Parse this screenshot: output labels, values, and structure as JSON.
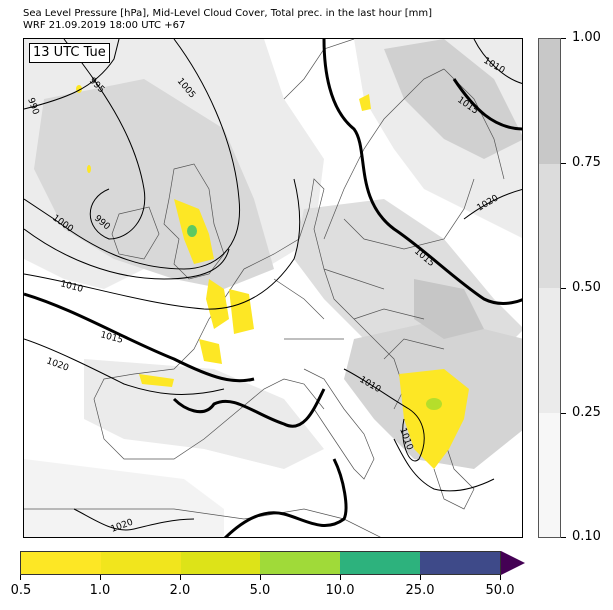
{
  "header": {
    "line1": "Sea Level Pressure [hPa], Mid-Level Cloud Cover, Total prec. in the last hour [mm]",
    "line2": "WRF 21.09.2019 18:00 UTC +67"
  },
  "map": {
    "valid_time_label": "13 UTC Tue",
    "pressure_contour_labels": [
      "990",
      "995",
      "1005",
      "990",
      "1000",
      "1010",
      "1015",
      "1020",
      "1010",
      "1015",
      "1020",
      "1015",
      "1010",
      "1010",
      "1020"
    ],
    "colors": {
      "coast": "#555555",
      "isobar": "#000000",
      "cloud_light": "#ececec",
      "cloud_mid": "#d8d8d8",
      "cloud_dark": "#c6c6c6",
      "precip_yellow": "#fde725",
      "precip_green": "#5ec962"
    }
  },
  "cloud_colorbar": {
    "tick_labels": [
      "1.00",
      "0.75",
      "0.50",
      "0.25",
      "0.10"
    ],
    "bands": [
      {
        "from": 0.75,
        "to": 1.0,
        "color": "#c8c8c8"
      },
      {
        "from": 0.5,
        "to": 0.75,
        "color": "#dcdcdc"
      },
      {
        "from": 0.25,
        "to": 0.5,
        "color": "#ebebeb"
      },
      {
        "from": 0.1,
        "to": 0.25,
        "color": "#f7f7f7"
      }
    ]
  },
  "precip_colorbar": {
    "tick_labels": [
      "0.5",
      "1.0",
      "2.0",
      "5.0",
      "10.0",
      "25.0",
      "50.0"
    ],
    "bands": [
      "#fde725",
      "#f1e51d",
      "#dde318",
      "#a0da39",
      "#2db27d",
      "#3e4a89"
    ],
    "extend_color": "#440154"
  }
}
